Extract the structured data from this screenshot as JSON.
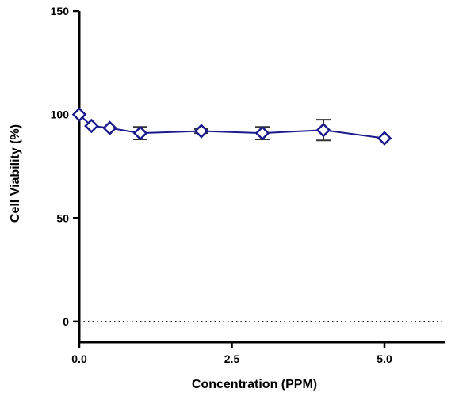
{
  "chart_data": {
    "type": "line",
    "title": "",
    "xlabel": "Concentration (PPM)",
    "ylabel": "Cell Viability (%)",
    "xlim": [
      0,
      6
    ],
    "ylim": [
      -10,
      150
    ],
    "x_ticks": [
      0,
      2.5,
      5
    ],
    "x_tick_labels": [
      "0.0",
      "2.5",
      "5.0"
    ],
    "y_ticks": [
      0,
      50,
      100,
      150
    ],
    "y_tick_labels": [
      "0",
      "50",
      "100",
      "150"
    ],
    "reference_line": {
      "y": 0,
      "style": "dotted"
    },
    "grid": false,
    "legend": "none",
    "series": [
      {
        "x": [
          0,
          0.2,
          0.5,
          1,
          2,
          3,
          4,
          5
        ],
        "y": [
          100,
          94.5,
          93.5,
          91,
          92,
          91,
          92.5,
          88.5
        ],
        "error": [
          0.5,
          0.5,
          0.5,
          3,
          1,
          3,
          5,
          0.5
        ],
        "marker": "diamond",
        "color": "#1a1a8c"
      }
    ]
  }
}
